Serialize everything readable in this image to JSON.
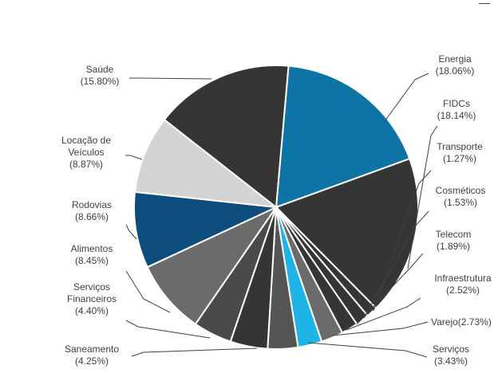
{
  "chart_data": {
    "type": "pie",
    "title": "",
    "start_category": "Energia",
    "slices": [
      {
        "label": "Energia",
        "value_text": "(18.06%)",
        "value": 18.06,
        "color": "#0e74a6"
      },
      {
        "label": "FIDCs",
        "value_text": "(18.14%)",
        "value": 18.14,
        "color": "#353535"
      },
      {
        "label": "Transporte",
        "value_text": "(1.27%)",
        "value": 1.27,
        "color": "#353535"
      },
      {
        "label": "Cosméticos",
        "value_text": "(1.53%)",
        "value": 1.53,
        "color": "#353535"
      },
      {
        "label": "Telecom",
        "value_text": "(1.89%)",
        "value": 1.89,
        "color": "#353535"
      },
      {
        "label": "Infraestrutura",
        "value_text": "(2.52%)",
        "value": 2.52,
        "color": "#6b6b6b"
      },
      {
        "label": "Varejo",
        "value_text": "(2.73%)",
        "value": 2.73,
        "color": "#1fb4e6"
      },
      {
        "label": "Serviços",
        "value_text": "(3.43%)",
        "value": 3.43,
        "color": "#555555"
      },
      {
        "label": "Saneamento",
        "value_text": "(4.25%)",
        "value": 4.25,
        "color": "#353535"
      },
      {
        "label": "Serviços Financeiros",
        "value_text": "(4.40%)",
        "value": 4.4,
        "color": "#4a4a4a"
      },
      {
        "label": "Alimentos",
        "value_text": "(8.45%)",
        "value": 8.45,
        "color": "#6b6b6b"
      },
      {
        "label": "Rodovias",
        "value_text": "(8.66%)",
        "value": 8.66,
        "color": "#0d4d7e"
      },
      {
        "label": "Locação de Veículos",
        "value_text": "(8.87%)",
        "value": 8.87,
        "color": "#d4d4d4"
      },
      {
        "label": "Saúde",
        "value_text": "(15.80%)",
        "value": 15.8,
        "color": "#353535"
      }
    ],
    "extra_slice_color": "#b0b0b0",
    "labels": [
      {
        "lines": [
          "Energia",
          "(18.06%)"
        ]
      },
      {
        "lines": [
          "FIDCs",
          "(18.14%)"
        ]
      },
      {
        "lines": [
          "Transporte",
          "(1.27%)"
        ]
      },
      {
        "lines": [
          "Cosméticos",
          "(1.53%)"
        ]
      },
      {
        "lines": [
          "Telecom",
          "(1.89%)"
        ]
      },
      {
        "lines": [
          "Infraestrutura",
          "(2.52%)"
        ]
      },
      {
        "lines": [
          "Varejo(2.73%)"
        ]
      },
      {
        "lines": [
          "Serviços",
          "(3.43%)"
        ]
      },
      {
        "lines": [
          "Saneamento",
          "(4.25%)"
        ]
      },
      {
        "lines": [
          "Serviços",
          "Financeiros",
          "(4.40%)"
        ]
      },
      {
        "lines": [
          "Alimentos",
          "(8.45%)"
        ]
      },
      {
        "lines": [
          "Rodovias",
          "(8.66%)"
        ]
      },
      {
        "lines": [
          "Locação de",
          "Veículos",
          "(8.87%)"
        ]
      },
      {
        "lines": [
          "Saúde",
          "(15.80%)"
        ]
      }
    ]
  }
}
